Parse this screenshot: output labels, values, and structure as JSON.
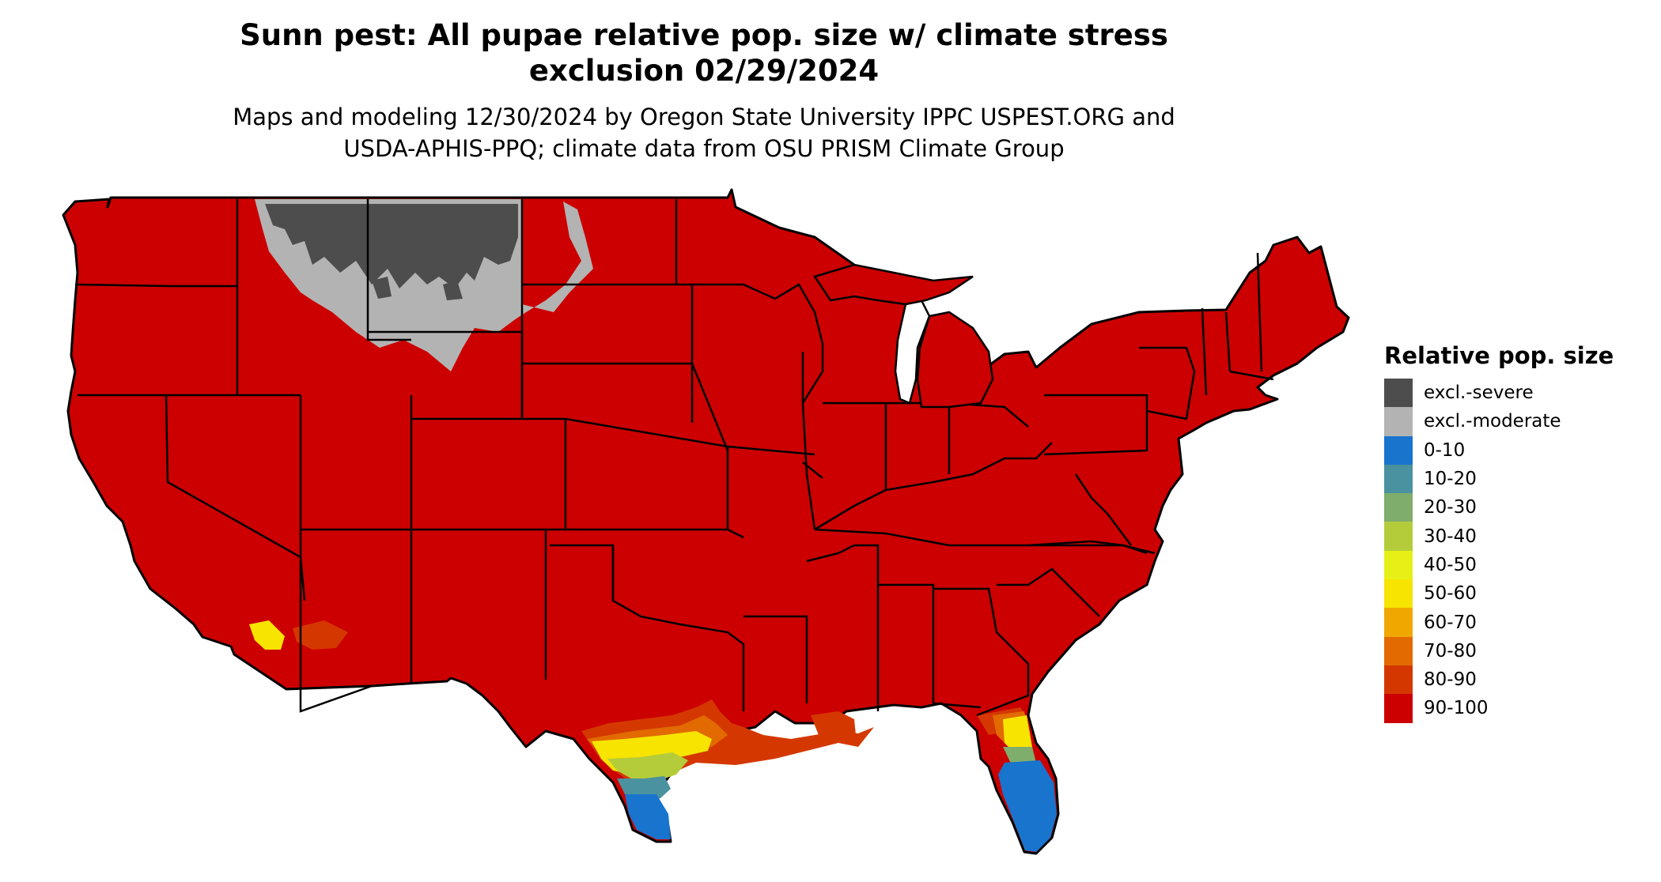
{
  "title_line1": "Sunn pest: All pupae relative pop. size w/ climate stress",
  "title_line2": "exclusion 02/29/2024",
  "subtitle_line1": "Maps and modeling 12/30/2024 by Oregon State University IPPC USPEST.ORG and",
  "subtitle_line2": "USDA-APHIS-PPQ; climate data from OSU PRISM Climate Group",
  "legend": {
    "title": "Relative pop. size",
    "items": [
      {
        "label": "excl.-severe",
        "color": "#4d4d4d"
      },
      {
        "label": "excl.-moderate",
        "color": "#b3b3b3"
      },
      {
        "label": "0-10",
        "color": "#1874cd"
      },
      {
        "label": "10-20",
        "color": "#4a92a0"
      },
      {
        "label": "20-30",
        "color": "#7fad6b"
      },
      {
        "label": "30-40",
        "color": "#b5cc3a"
      },
      {
        "label": "40-50",
        "color": "#e6f016"
      },
      {
        "label": "50-60",
        "color": "#f7e400"
      },
      {
        "label": "60-70",
        "color": "#f0a800"
      },
      {
        "label": "70-80",
        "color": "#e26a00"
      },
      {
        "label": "80-90",
        "color": "#d43800"
      },
      {
        "label": "90-100",
        "color": "#cc0000"
      }
    ]
  }
}
